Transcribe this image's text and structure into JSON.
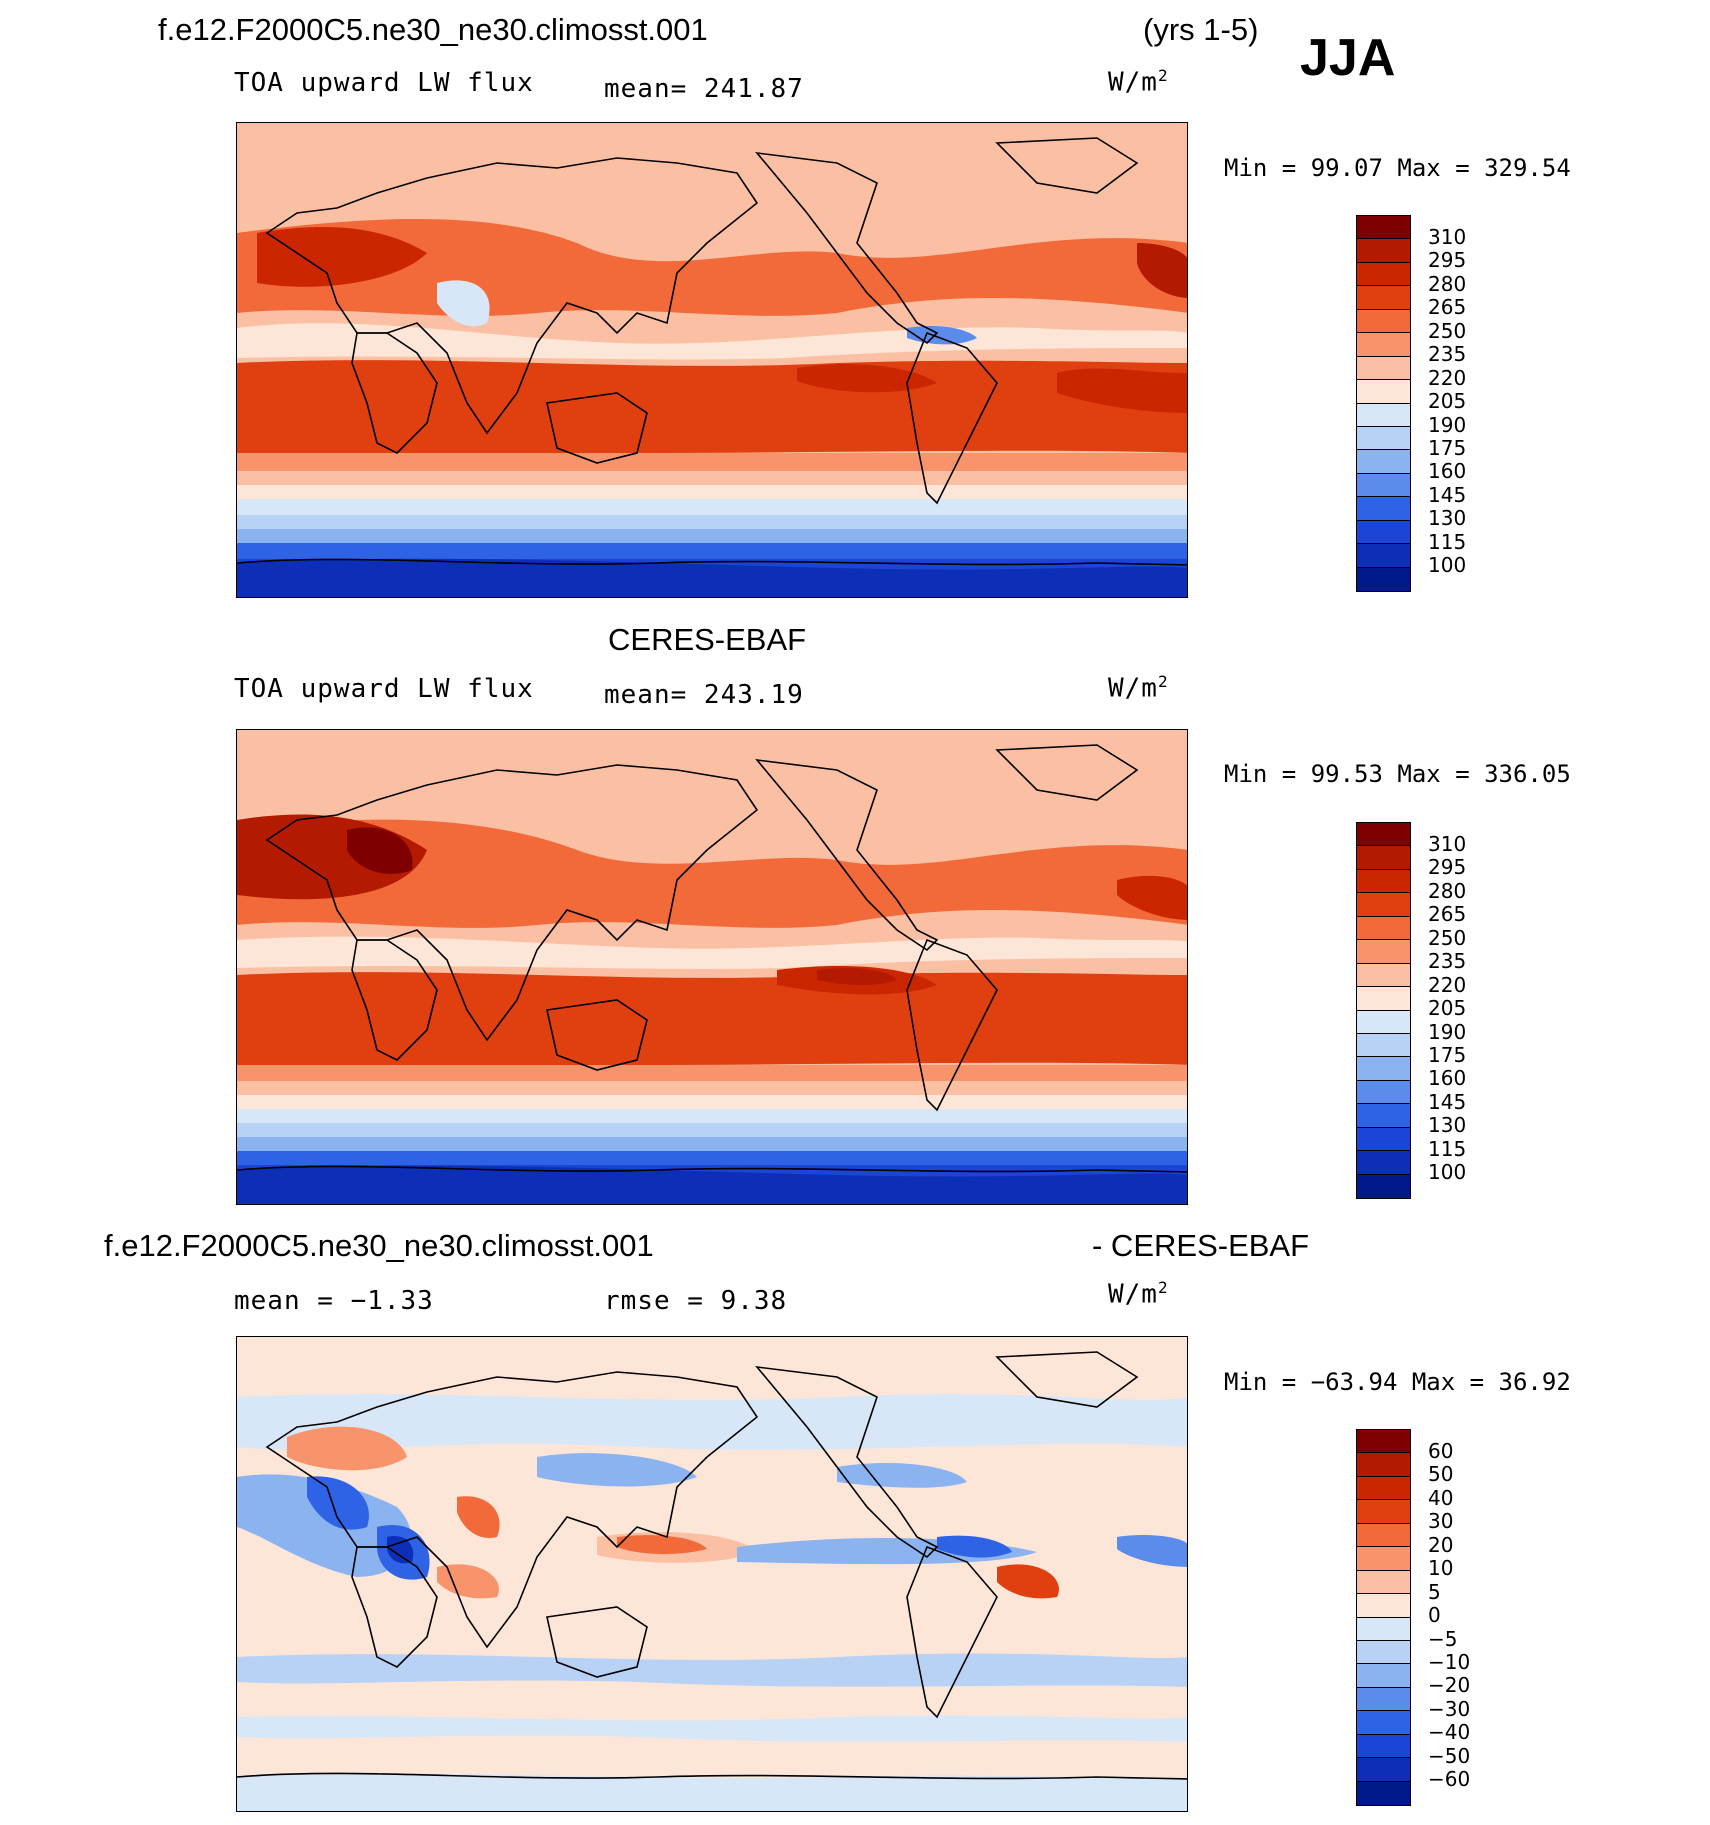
{
  "season": "JJA",
  "header": {
    "case_name": "f.e12.F2000C5.ne30_ne30.climosst.001",
    "years": "(yrs 1-5)"
  },
  "panels": [
    {
      "id": "model",
      "title": "",
      "variable": "TOA upward LW flux",
      "stat_label": "mean= 241.87",
      "unit": "W/m",
      "unit_exp": "2",
      "minmax": "Min =   99.07 Max =  329.54",
      "colorbar": {
        "ticks": [
          "310",
          "295",
          "280",
          "265",
          "250",
          "235",
          "220",
          "205",
          "190",
          "175",
          "160",
          "145",
          "130",
          "115",
          "100"
        ],
        "colors": [
          "#7f0000",
          "#b31a00",
          "#cc2600",
          "#e04010",
          "#f26a3a",
          "#f7946b",
          "#fbc0a3",
          "#fde6d8",
          "#d8e7f7",
          "#b8d2f5",
          "#8ab3f0",
          "#5b8cec",
          "#2f63e6",
          "#1a45d6",
          "#0d2fb8",
          "#001a8c"
        ]
      }
    },
    {
      "id": "obs",
      "title": "CERES-EBAF",
      "variable": "TOA upward LW flux",
      "stat_label": "mean= 243.19",
      "unit": "W/m",
      "unit_exp": "2",
      "minmax": "Min =   99.53 Max =  336.05",
      "colorbar": {
        "ticks": [
          "310",
          "295",
          "280",
          "265",
          "250",
          "235",
          "220",
          "205",
          "190",
          "175",
          "160",
          "145",
          "130",
          "115",
          "100"
        ],
        "colors": [
          "#7f0000",
          "#b31a00",
          "#cc2600",
          "#e04010",
          "#f26a3a",
          "#f7946b",
          "#fbc0a3",
          "#fde6d8",
          "#d8e7f7",
          "#b8d2f5",
          "#8ab3f0",
          "#5b8cec",
          "#2f63e6",
          "#1a45d6",
          "#0d2fb8",
          "#001a8c"
        ]
      }
    },
    {
      "id": "diff",
      "title_left": "f.e12.F2000C5.ne30_ne30.climosst.001",
      "title_right": "- CERES-EBAF",
      "stat_mean": "mean =   −1.33",
      "stat_rmse": "rmse =    9.38",
      "unit": "W/m",
      "unit_exp": "2",
      "minmax": "Min = −63.94 Max =   36.92",
      "colorbar": {
        "ticks": [
          "60",
          "50",
          "40",
          "30",
          "20",
          "10",
          "5",
          "0",
          "−5",
          "−10",
          "−20",
          "−30",
          "−40",
          "−50",
          "−60"
        ],
        "colors": [
          "#7f0000",
          "#b31a00",
          "#cc2600",
          "#e04010",
          "#f26a3a",
          "#f7946b",
          "#fbc0a3",
          "#fde6d8",
          "#d8e7f7",
          "#b8d2f5",
          "#8ab3f0",
          "#5b8cec",
          "#2f63e6",
          "#1a45d6",
          "#0d2fb8",
          "#001a8c"
        ]
      }
    }
  ]
}
